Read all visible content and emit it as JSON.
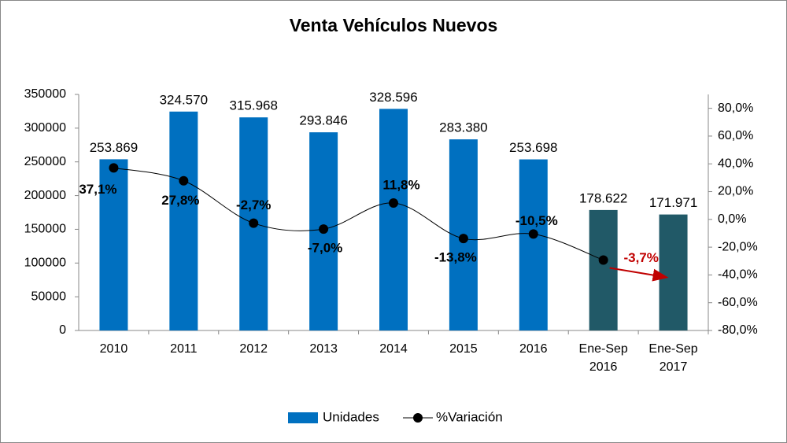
{
  "chart_data": {
    "type": "bar_line",
    "title": "Venta Vehículos Nuevos",
    "categories": [
      "2010",
      "2011",
      "2012",
      "2013",
      "2014",
      "2015",
      "2016",
      "Ene-Sep 2016",
      "Ene-Sep 2017"
    ],
    "series": [
      {
        "name": "Unidades",
        "type": "bar",
        "color": "#0070c0",
        "colors": [
          "#0070c0",
          "#0070c0",
          "#0070c0",
          "#0070c0",
          "#0070c0",
          "#0070c0",
          "#0070c0",
          "#215967",
          "#215967"
        ],
        "values": [
          253869,
          324570,
          315968,
          293846,
          328596,
          283380,
          253698,
          178622,
          171971
        ],
        "value_labels": [
          "253.869",
          "324.570",
          "315.968",
          "293.846",
          "328.596",
          "283.380",
          "253.698",
          "178.622",
          "171.971"
        ]
      },
      {
        "name": "%Variación",
        "type": "line",
        "axis": "y2",
        "color": "#000000",
        "values": [
          37.1,
          27.8,
          -2.7,
          -7.0,
          11.8,
          -13.8,
          -10.5,
          -29.3,
          null
        ],
        "value_labels": [
          "37,1%",
          "27,8%",
          "-2,7%",
          "-7,0%",
          "11,8%",
          "-13,8%",
          "-10,5%",
          null,
          null
        ]
      }
    ],
    "annotation": {
      "text": "-3,7%",
      "color": "#c00000"
    },
    "ylim": [
      0,
      350000
    ],
    "yticks": [
      0,
      50000,
      100000,
      150000,
      200000,
      250000,
      300000,
      350000
    ],
    "y2lim": [
      -80,
      90
    ],
    "y2ticks": [
      {
        "value": -80,
        "label": "-80,0%"
      },
      {
        "value": -60,
        "label": "-60,0%"
      },
      {
        "value": -40,
        "label": "-40,0%"
      },
      {
        "value": -20,
        "label": "-20,0%"
      },
      {
        "value": 0,
        "label": "0,0%"
      },
      {
        "value": 20,
        "label": "20,0%"
      },
      {
        "value": 40,
        "label": "40,0%"
      },
      {
        "value": 60,
        "label": "60,0%"
      },
      {
        "value": 80,
        "label": "80,0%"
      }
    ],
    "legend": "bottom",
    "grid": false
  }
}
